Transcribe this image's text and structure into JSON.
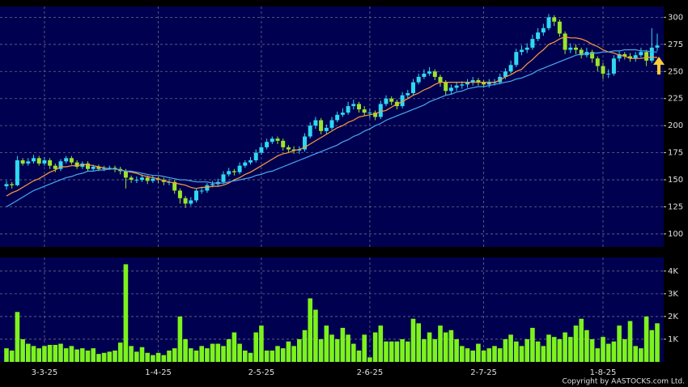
{
  "chart_data": [
    {
      "type": "candlestick",
      "up_color": "#2fd8f2",
      "down_color": "#9be42c",
      "ylim": [
        88,
        310
      ],
      "yticks": [
        100,
        125,
        150,
        175,
        200,
        225,
        250,
        275,
        300
      ],
      "grid": true,
      "open": [
        144,
        146,
        145,
        168,
        165,
        167,
        170,
        165,
        168,
        163,
        160,
        167,
        170,
        166,
        162,
        165,
        160,
        162,
        160,
        161,
        161,
        160,
        158,
        152,
        150,
        150,
        152,
        149,
        151,
        150,
        148,
        148,
        140,
        133,
        128,
        131,
        140,
        140,
        145,
        146,
        148,
        155,
        158,
        157,
        163,
        166,
        168,
        175,
        180,
        185,
        188,
        186,
        180,
        178,
        177,
        178,
        190,
        200,
        205,
        195,
        198,
        205,
        210,
        212,
        218,
        220,
        215,
        212,
        212,
        208,
        220,
        225,
        222,
        218,
        228,
        230,
        240,
        245,
        248,
        250,
        245,
        240,
        232,
        235,
        237,
        238,
        240,
        242,
        240,
        238,
        240,
        240,
        245,
        250,
        256,
        268,
        270,
        272,
        280,
        286,
        290,
        300,
        296,
        285,
        270,
        272,
        270,
        265,
        268,
        262,
        255,
        248,
        248,
        262,
        266,
        264,
        262,
        265,
        268,
        260,
        272
      ],
      "high": [
        149,
        148,
        172,
        170,
        170,
        173,
        172,
        171,
        170,
        165,
        169,
        172,
        172,
        168,
        167,
        167,
        164,
        164,
        163,
        163,
        163,
        162,
        160,
        154,
        153,
        155,
        154,
        154,
        153,
        152,
        151,
        150,
        142,
        135,
        134,
        142,
        143,
        147,
        149,
        151,
        158,
        161,
        160,
        166,
        168,
        171,
        178,
        184,
        188,
        190,
        190,
        188,
        182,
        181,
        181,
        193,
        203,
        208,
        207,
        201,
        208,
        213,
        216,
        222,
        224,
        222,
        218,
        216,
        214,
        223,
        228,
        227,
        224,
        231,
        233,
        243,
        248,
        252,
        254,
        252,
        247,
        242,
        238,
        240,
        241,
        243,
        245,
        244,
        242,
        243,
        243,
        248,
        253,
        260,
        271,
        274,
        276,
        284,
        290,
        294,
        303,
        302,
        298,
        287,
        276,
        275,
        272,
        272,
        270,
        264,
        258,
        252,
        265,
        269,
        268,
        267,
        268,
        272,
        270,
        290,
        285
      ],
      "low": [
        141,
        142,
        144,
        163,
        163,
        165,
        163,
        163,
        160,
        157,
        158,
        165,
        164,
        160,
        160,
        158,
        158,
        158,
        158,
        159,
        157,
        155,
        142,
        147,
        147,
        148,
        146,
        147,
        147,
        145,
        145,
        137,
        128,
        124,
        126,
        129,
        137,
        138,
        143,
        144,
        146,
        153,
        154,
        155,
        161,
        164,
        166,
        173,
        178,
        183,
        183,
        177,
        175,
        174,
        174,
        176,
        188,
        197,
        192,
        192,
        196,
        203,
        208,
        210,
        215,
        212,
        209,
        207,
        205,
        206,
        218,
        219,
        215,
        216,
        225,
        228,
        238,
        243,
        246,
        242,
        236,
        228,
        229,
        232,
        234,
        235,
        237,
        237,
        235,
        235,
        237,
        238,
        243,
        248,
        254,
        265,
        267,
        270,
        278,
        283,
        288,
        292,
        282,
        266,
        267,
        266,
        262,
        263,
        258,
        250,
        243,
        244,
        246,
        259,
        261,
        259,
        259,
        263,
        255,
        258,
        269
      ],
      "close": [
        146,
        145,
        168,
        165,
        167,
        170,
        165,
        168,
        163,
        160,
        167,
        170,
        166,
        162,
        165,
        160,
        162,
        160,
        161,
        161,
        160,
        158,
        152,
        150,
        150,
        152,
        149,
        151,
        150,
        148,
        148,
        140,
        133,
        128,
        131,
        140,
        140,
        145,
        146,
        148,
        155,
        158,
        157,
        163,
        166,
        168,
        175,
        180,
        185,
        188,
        186,
        180,
        178,
        177,
        178,
        190,
        200,
        205,
        195,
        198,
        205,
        210,
        212,
        218,
        220,
        215,
        212,
        212,
        208,
        220,
        225,
        222,
        218,
        228,
        230,
        240,
        245,
        248,
        250,
        245,
        240,
        232,
        235,
        237,
        238,
        240,
        242,
        240,
        238,
        240,
        240,
        245,
        250,
        256,
        268,
        270,
        272,
        280,
        286,
        290,
        300,
        296,
        285,
        270,
        272,
        270,
        265,
        268,
        262,
        255,
        248,
        248,
        262,
        266,
        264,
        262,
        265,
        268,
        260,
        272,
        274
      ],
      "lines": [
        {
          "color": "#ff9a3c",
          "values": [
            135,
            138,
            140,
            143,
            146,
            149,
            151,
            154,
            157,
            159,
            162,
            162,
            163,
            163,
            164,
            164,
            163,
            162,
            161,
            160,
            160,
            159,
            158,
            157,
            156,
            154,
            153,
            152,
            151,
            149,
            148,
            147,
            146,
            145,
            143,
            142,
            143,
            143,
            144,
            144,
            145,
            147,
            150,
            152,
            155,
            157,
            160,
            163,
            166,
            169,
            172,
            174,
            175,
            177,
            178,
            180,
            183,
            186,
            189,
            192,
            195,
            198,
            200,
            203,
            205,
            208,
            209,
            210,
            211,
            213,
            214,
            217,
            220,
            222,
            225,
            228,
            230,
            233,
            235,
            238,
            240,
            240,
            240,
            240,
            240,
            240,
            240,
            240,
            240,
            240,
            240,
            242,
            245,
            247,
            250,
            252,
            257,
            261,
            266,
            270,
            275,
            277,
            280,
            282,
            281,
            281,
            280,
            278,
            275,
            273,
            270,
            268,
            267,
            265,
            264,
            262,
            262,
            262,
            263,
            263,
            263
          ]
        },
        {
          "color": "#49a8f0",
          "values": [
            125,
            128,
            131,
            134,
            137,
            140,
            142,
            144,
            146,
            148,
            150,
            152,
            153,
            155,
            156,
            158,
            158,
            159,
            159,
            160,
            160,
            159,
            158,
            158,
            157,
            156,
            155,
            154,
            154,
            153,
            152,
            151,
            150,
            150,
            149,
            148,
            148,
            148,
            147,
            147,
            147,
            148,
            149,
            150,
            151,
            152,
            154,
            155,
            157,
            158,
            160,
            162,
            164,
            166,
            168,
            170,
            172,
            174,
            176,
            178,
            180,
            182,
            185,
            187,
            190,
            192,
            195,
            197,
            200,
            202,
            205,
            207,
            209,
            211,
            213,
            215,
            217,
            219,
            222,
            224,
            226,
            228,
            229,
            231,
            232,
            234,
            235,
            236,
            236,
            237,
            238,
            239,
            240,
            241,
            243,
            244,
            246,
            248,
            251,
            253,
            255,
            257,
            259,
            261,
            263,
            265,
            266,
            266,
            267,
            267,
            268,
            268,
            269,
            269,
            270,
            270,
            270,
            269,
            269,
            268,
            268
          ]
        }
      ]
    },
    {
      "type": "bar",
      "color": "#7df21c",
      "ylim": [
        0,
        4600
      ],
      "yticks": [
        {
          "value": 1000,
          "label": "1K"
        },
        {
          "value": 2000,
          "label": "2K"
        },
        {
          "value": 3000,
          "label": "3K"
        },
        {
          "value": 4000,
          "label": "4K"
        }
      ],
      "grid": true,
      "categories": [
        null,
        null,
        null,
        null,
        null,
        null,
        null,
        "3-3-25",
        null,
        null,
        null,
        null,
        null,
        null,
        null,
        null,
        null,
        null,
        null,
        null,
        null,
        null,
        null,
        null,
        null,
        null,
        null,
        null,
        "1-4-25",
        null,
        null,
        null,
        null,
        null,
        null,
        null,
        null,
        null,
        null,
        null,
        null,
        null,
        null,
        null,
        null,
        null,
        null,
        "2-5-25",
        null,
        null,
        null,
        null,
        null,
        null,
        null,
        null,
        null,
        null,
        null,
        null,
        null,
        null,
        null,
        null,
        null,
        null,
        null,
        "2-6-25",
        null,
        null,
        null,
        null,
        null,
        null,
        null,
        null,
        null,
        null,
        null,
        null,
        null,
        null,
        null,
        null,
        null,
        null,
        null,
        null,
        "2-7-25",
        null,
        null,
        null,
        null,
        null,
        null,
        null,
        null,
        null,
        null,
        null,
        null,
        null,
        null,
        null,
        null,
        null,
        null,
        null,
        null,
        null,
        "1-8-25",
        null,
        null,
        null,
        null,
        null,
        null,
        null,
        null,
        null,
        null
      ],
      "values": [
        600,
        500,
        2200,
        1000,
        800,
        700,
        600,
        700,
        750,
        750,
        800,
        600,
        700,
        550,
        600,
        500,
        600,
        350,
        400,
        450,
        500,
        850,
        4300,
        700,
        450,
        650,
        400,
        300,
        400,
        300,
        500,
        600,
        2000,
        1000,
        600,
        500,
        700,
        600,
        800,
        800,
        700,
        1000,
        1300,
        800,
        500,
        400,
        1300,
        1600,
        500,
        500,
        700,
        600,
        900,
        700,
        1000,
        1400,
        2800,
        2300,
        1000,
        1600,
        1200,
        1000,
        1500,
        1200,
        800,
        500,
        1200,
        200,
        1300,
        1600,
        900,
        900,
        900,
        1000,
        900,
        1900,
        1700,
        1000,
        1300,
        1000,
        1600,
        1300,
        1400,
        1000,
        700,
        600,
        500,
        800,
        500,
        600,
        700,
        600,
        1000,
        1200,
        900,
        700,
        1000,
        1500,
        900,
        700,
        1200,
        1100,
        1000,
        1300,
        1100,
        1600,
        1900,
        1400,
        1000,
        600,
        1100,
        800,
        900,
        1600,
        1000,
        1800,
        700,
        600,
        2000,
        1400,
        1700
      ],
      "source": "Copyright by AASTOCKS.com Ltd."
    }
  ]
}
